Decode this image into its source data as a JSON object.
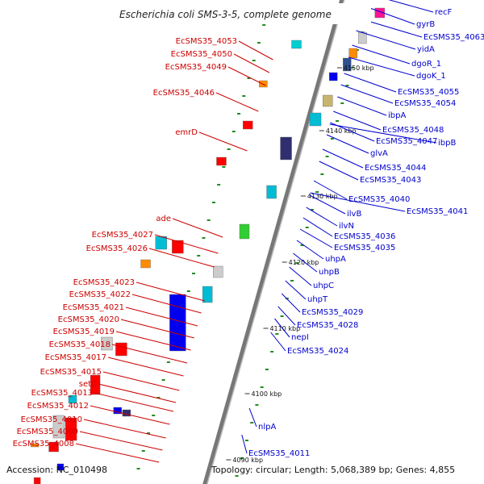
{
  "title": "Escherichia coli SMS-3-5, complete genome",
  "footer": {
    "accession": "Accession: NC_010498",
    "topology": "Topology: circular; Length: 5,068,389 bp; Genes: 4,855"
  },
  "ticks": [
    "4150 kbp",
    "4140 kbp",
    "4130 kbp",
    "4120 kbp",
    "4110 kbp",
    "4100 kbp",
    "4090 kbp"
  ],
  "right_genes": [
    "recF",
    "gyrB",
    "EcSMS35_4063",
    "yidA",
    "dgoR_1",
    "dgoK_1",
    "EcSMS35_4055",
    "EcSMS35_4054",
    "ibpA",
    "EcSMS35_4048",
    "EcSMS35_4047",
    "ibpB",
    "glvA",
    "EcSMS35_4044",
    "EcSMS35_4043",
    "EcSMS35_4040",
    "EcSMS35_4041",
    "ilvB",
    "ilvN",
    "EcSMS35_4036",
    "EcSMS35_4035",
    "uhpA",
    "uhpB",
    "uhpC",
    "uhpT",
    "EcSMS35_4029",
    "EcSMS35_4028",
    "nepI",
    "EcSMS35_4024",
    "nlpA",
    "EcSMS35_4011"
  ],
  "left_genes": [
    "EcSMS35_4053",
    "EcSMS35_4050",
    "EcSMS35_4049",
    "EcSMS35_4046",
    "emrD",
    "ade",
    "EcSMS35_4027",
    "EcSMS35_4026",
    "EcSMS35_4023",
    "EcSMS35_4022",
    "EcSMS35_4021",
    "EcSMS35_4020",
    "EcSMS35_4019",
    "EcSMS35_4018",
    "EcSMS35_4017",
    "EcSMS35_4015",
    "setC",
    "EcSMS35_4013",
    "EcSMS35_4012",
    "EcSMS35_4010",
    "EcSMS35_4009",
    "EcSMS35_4008"
  ],
  "colors": {
    "right_label": "#0000cc",
    "left_label": "#cc0000",
    "backbone": "#888888",
    "gc_dots": "#228b22"
  }
}
